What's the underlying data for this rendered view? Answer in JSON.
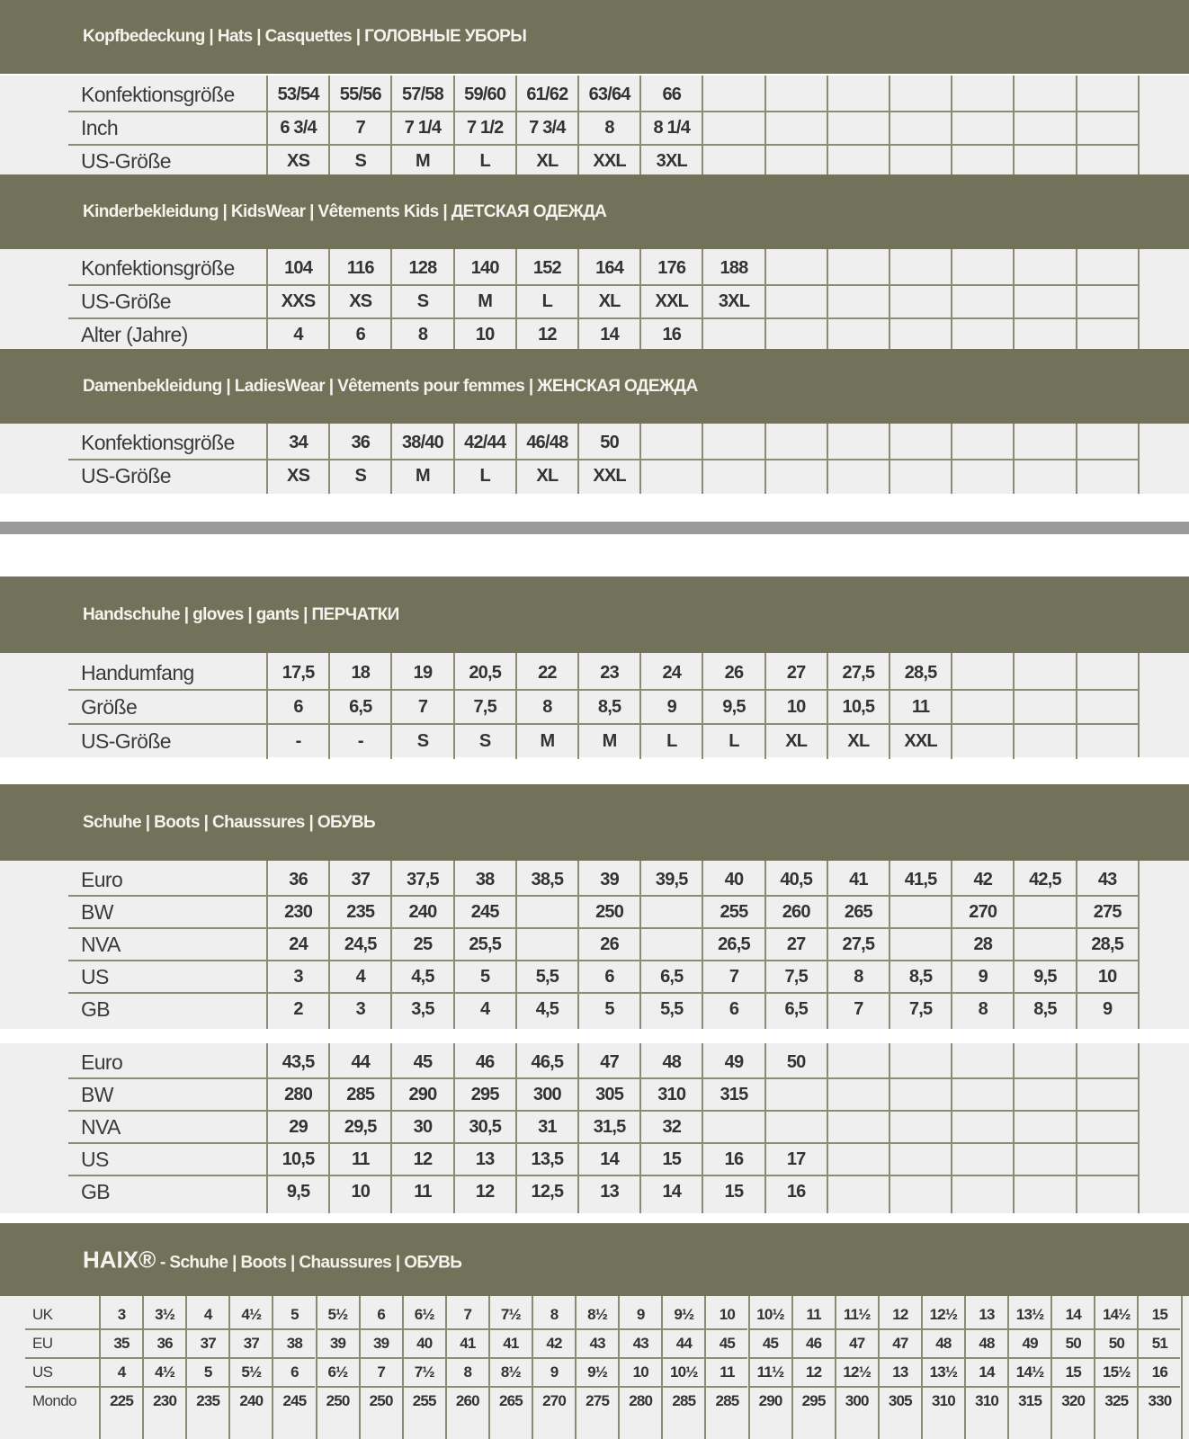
{
  "colors": {
    "header_bg": "#727159",
    "table_bg": "#efefef",
    "grid": "#8c8b74",
    "separator": "#999999"
  },
  "sections": [
    {
      "title": "Kopfbedeckung | Hats | Casquettes | ГОЛОВНЫЕ УБОРЫ",
      "tables": [
        {
          "rows": [
            {
              "label": "Konfektionsgröße",
              "cells": [
                "53/54",
                "55/56",
                "57/58",
                "59/60",
                "61/62",
                "63/64",
                "66"
              ]
            },
            {
              "label": "Inch",
              "cells": [
                "6 3/4",
                "7",
                "7 1/4",
                "7 1/2",
                "7 3/4",
                "8",
                "8 1/4"
              ]
            },
            {
              "label": "US-Größe",
              "cells": [
                "XS",
                "S",
                "M",
                "L",
                "XL",
                "XXL",
                "3XL"
              ]
            }
          ]
        }
      ]
    },
    {
      "title": "Kinderbekleidung | KidsWear | Vêtements Kids | ДЕТСКАЯ ОДЕЖДА",
      "tables": [
        {
          "rows": [
            {
              "label": "Konfektionsgröße",
              "cells": [
                "104",
                "116",
                "128",
                "140",
                "152",
                "164",
                "176",
                "188"
              ]
            },
            {
              "label": "US-Größe",
              "cells": [
                "XXS",
                "XS",
                "S",
                "M",
                "L",
                "XL",
                "XXL",
                "3XL"
              ]
            },
            {
              "label": "Alter (Jahre)",
              "cells": [
                "4",
                "6",
                "8",
                "10",
                "12",
                "14",
                "16"
              ]
            }
          ]
        }
      ]
    },
    {
      "title": "Damenbekleidung | LadiesWear | Vêtements pour femmes | ЖЕНСКАЯ ОДЕЖДА",
      "tables": [
        {
          "rows": [
            {
              "label": "Konfektionsgröße",
              "cells": [
                "34",
                "36",
                "38/40",
                "42/44",
                "46/48",
                "50"
              ]
            },
            {
              "label": "US-Größe",
              "cells": [
                "XS",
                "S",
                "M",
                "L",
                "XL",
                "XXL"
              ]
            }
          ]
        }
      ]
    },
    {
      "title": "Handschuhe | gloves | gants | ПЕРЧАТКИ",
      "tables": [
        {
          "rows": [
            {
              "label": "Handumfang",
              "cells": [
                "17,5",
                "18",
                "19",
                "20,5",
                "22",
                "23",
                "24",
                "26",
                "27",
                "27,5",
                "28,5"
              ]
            },
            {
              "label": "Größe",
              "cells": [
                "6",
                "6,5",
                "7",
                "7,5",
                "8",
                "8,5",
                "9",
                "9,5",
                "10",
                "10,5",
                "11"
              ]
            },
            {
              "label": "US-Größe",
              "cells": [
                "-",
                "-",
                "S",
                "S",
                "M",
                "M",
                "L",
                "L",
                "XL",
                "XL",
                "XXL"
              ]
            }
          ]
        }
      ]
    },
    {
      "title": "Schuhe | Boots | Chaussures | ОБУВЬ",
      "tables": [
        {
          "rows": [
            {
              "label": "Euro",
              "cells": [
                "36",
                "37",
                "37,5",
                "38",
                "38,5",
                "39",
                "39,5",
                "40",
                "40,5",
                "41",
                "41,5",
                "42",
                "42,5",
                "43"
              ]
            },
            {
              "label": "BW",
              "cells": [
                "230",
                "235",
                "240",
                "245",
                "",
                "250",
                "",
                "255",
                "260",
                "265",
                "",
                "270",
                "",
                "275"
              ]
            },
            {
              "label": "NVA",
              "cells": [
                "24",
                "24,5",
                "25",
                "25,5",
                "",
                "26",
                "",
                "26,5",
                "27",
                "27,5",
                "",
                "28",
                "",
                "28,5"
              ]
            },
            {
              "label": "US",
              "cells": [
                "3",
                "4",
                "4,5",
                "5",
                "5,5",
                "6",
                "6,5",
                "7",
                "7,5",
                "8",
                "8,5",
                "9",
                "9,5",
                "10"
              ]
            },
            {
              "label": "GB",
              "cells": [
                "2",
                "3",
                "3,5",
                "4",
                "4,5",
                "5",
                "5,5",
                "6",
                "6,5",
                "7",
                "7,5",
                "8",
                "8,5",
                "9"
              ]
            }
          ]
        },
        {
          "rows": [
            {
              "label": "Euro",
              "cells": [
                "43,5",
                "44",
                "45",
                "46",
                "46,5",
                "47",
                "48",
                "49",
                "50"
              ]
            },
            {
              "label": "BW",
              "cells": [
                "280",
                "285",
                "290",
                "295",
                "300",
                "305",
                "310",
                "315"
              ]
            },
            {
              "label": "NVA",
              "cells": [
                "29",
                "29,5",
                "30",
                "30,5",
                "31",
                "31,5",
                "32"
              ]
            },
            {
              "label": "US",
              "cells": [
                "10,5",
                "11",
                "12",
                "13",
                "13,5",
                "14",
                "15",
                "16",
                "17"
              ]
            },
            {
              "label": "GB",
              "cells": [
                "9,5",
                "10",
                "11",
                "12",
                "12,5",
                "13",
                "14",
                "15",
                "16"
              ]
            }
          ]
        }
      ]
    },
    {
      "title_brand": "HAIX®",
      "title": " - Schuhe | Boots | Chaussures | ОБУВЬ",
      "tables": [
        {
          "rows": [
            {
              "label": "UK",
              "cells": [
                "3",
                "3½",
                "4",
                "4½",
                "5",
                "5½",
                "6",
                "6½",
                "7",
                "7½",
                "8",
                "8½",
                "9",
                "9½",
                "10",
                "10½",
                "11",
                "11½",
                "12",
                "12½",
                "13",
                "13½",
                "14",
                "14½",
                "15"
              ]
            },
            {
              "label": "EU",
              "cells": [
                "35",
                "36",
                "37",
                "37",
                "38",
                "39",
                "39",
                "40",
                "41",
                "41",
                "42",
                "43",
                "43",
                "44",
                "45",
                "45",
                "46",
                "47",
                "47",
                "48",
                "48",
                "49",
                "50",
                "50",
                "51"
              ]
            },
            {
              "label": "US",
              "cells": [
                "4",
                "4½",
                "5",
                "5½",
                "6",
                "6½",
                "7",
                "7½",
                "8",
                "8½",
                "9",
                "9½",
                "10",
                "10½",
                "11",
                "11½",
                "12",
                "12½",
                "13",
                "13½",
                "14",
                "14½",
                "15",
                "15½",
                "16"
              ]
            },
            {
              "label": "Mondo",
              "cells": [
                "225",
                "230",
                "235",
                "240",
                "245",
                "250",
                "250",
                "255",
                "260",
                "265",
                "270",
                "275",
                "280",
                "285",
                "285",
                "290",
                "295",
                "300",
                "305",
                "310",
                "310",
                "315",
                "320",
                "325",
                "330"
              ]
            }
          ]
        }
      ]
    }
  ]
}
